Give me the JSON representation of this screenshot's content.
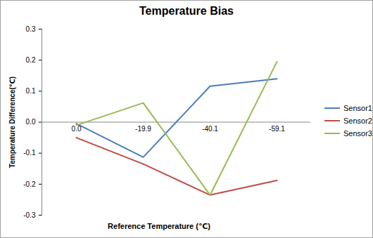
{
  "chart_data": {
    "type": "line",
    "title": "Temperature Bias",
    "x_label": "Reference Temperature (℃)",
    "y_label": "Temperature Difference(℃)",
    "categories": [
      "0.0",
      "-19.9",
      "-40.1",
      "-59.1"
    ],
    "series": [
      {
        "name": "Sensor1",
        "color": "#4a7ebb",
        "values": [
          -0.005,
          -0.113,
          0.116,
          0.14
        ]
      },
      {
        "name": "Sensor2",
        "color": "#be4b48",
        "values": [
          -0.05,
          -0.135,
          -0.235,
          -0.188
        ]
      },
      {
        "name": "Sensor3",
        "color": "#98b954",
        "values": [
          -0.01,
          0.062,
          -0.235,
          0.195
        ]
      }
    ],
    "ylim": [
      -0.3,
      0.3
    ],
    "yticks": [
      -0.3,
      -0.2,
      -0.1,
      {
        "value": 0,
        "label": "0.0"
      },
      0.1,
      0.2,
      0.3
    ],
    "grid": false,
    "legend": "right"
  }
}
